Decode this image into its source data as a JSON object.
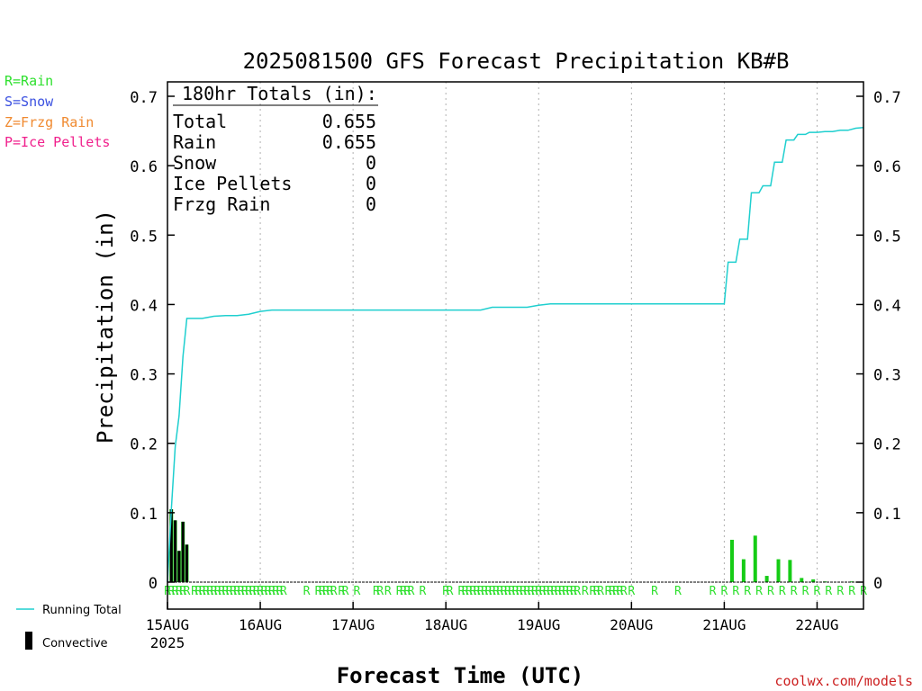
{
  "chart_data": {
    "type": "bar",
    "title": "2025081500 GFS Forecast Precipitation KB#B",
    "xlabel": "Forecast Time (UTC)",
    "ylabel": "Precipitation (in)",
    "ylim": [
      0,
      0.7
    ],
    "y_ticks": [
      0,
      0.1,
      0.2,
      0.3,
      0.4,
      0.5,
      0.6,
      0.7
    ],
    "y_tick_labels": [
      "0",
      "0.1",
      "0.2",
      "0.3",
      "0.4",
      "0.5",
      "0.6",
      "0.7"
    ],
    "xlim_hours": [
      0,
      180
    ],
    "x_ticks": [
      {
        "hour": 0,
        "label": "15AUG",
        "sub": "2025"
      },
      {
        "hour": 24,
        "label": "16AUG"
      },
      {
        "hour": 48,
        "label": "17AUG"
      },
      {
        "hour": 72,
        "label": "18AUG"
      },
      {
        "hour": 96,
        "label": "19AUG"
      },
      {
        "hour": 120,
        "label": "20AUG"
      },
      {
        "hour": 144,
        "label": "21AUG"
      },
      {
        "hour": 168,
        "label": "22AUG"
      }
    ],
    "grid": "vertical dotted at day boundaries",
    "legend_placement": "left",
    "legend_types": [
      {
        "label": "R=Rain",
        "color": "#2ee02e"
      },
      {
        "label": "S=Snow",
        "color": "#3a50e0"
      },
      {
        "label": "Z=Frzg Rain",
        "color": "#f08a30"
      },
      {
        "label": "P=Ice Pellets",
        "color": "#f0208c"
      }
    ],
    "legend_series": [
      {
        "label": "Running Total",
        "color": "#1fcfcf",
        "kind": "line"
      },
      {
        "label": "Convective",
        "color": "#000000",
        "kind": "bar"
      }
    ],
    "totals_box": {
      "header": "180hr Totals (in):",
      "rows": [
        {
          "label": "Total",
          "value": "0.655"
        },
        {
          "label": "Rain",
          "value": "0.655"
        },
        {
          "label": "Snow",
          "value": "0"
        },
        {
          "label": "Ice Pellets",
          "value": "0"
        },
        {
          "label": "Frzg Rain",
          "value": "0"
        }
      ]
    },
    "colors": {
      "running_total": "#1fcfcf",
      "rain_bar": "#16cc16",
      "convective": "#000000",
      "grid": "#b0b0b0",
      "type_marker": "#2ee02e",
      "credit": "#cc2020"
    },
    "running_total": {
      "hours": [
        0,
        1,
        2,
        3,
        4,
        5,
        6,
        9,
        12,
        15,
        18,
        21,
        24,
        27,
        30,
        54,
        78,
        81,
        84,
        87,
        90,
        93,
        96,
        99,
        102,
        144,
        145,
        147,
        148,
        150,
        151,
        153,
        154,
        156,
        157,
        159,
        160,
        162,
        163,
        165,
        166,
        168,
        170,
        172,
        174,
        176,
        178,
        180
      ],
      "values": [
        0,
        0.105,
        0.195,
        0.24,
        0.325,
        0.38,
        0.38,
        0.38,
        0.383,
        0.384,
        0.384,
        0.386,
        0.39,
        0.392,
        0.392,
        0.392,
        0.392,
        0.392,
        0.396,
        0.396,
        0.396,
        0.396,
        0.399,
        0.401,
        0.401,
        0.401,
        0.461,
        0.461,
        0.494,
        0.494,
        0.561,
        0.561,
        0.571,
        0.571,
        0.605,
        0.605,
        0.637,
        0.637,
        0.645,
        0.645,
        0.648,
        0.648,
        0.649,
        0.649,
        0.651,
        0.651,
        0.654,
        0.655
      ]
    },
    "total_precip_bars": {
      "hours": [
        1,
        2,
        3,
        4,
        5,
        146,
        149,
        152,
        155,
        158,
        161,
        164,
        167,
        170,
        177
      ],
      "values": [
        0.105,
        0.089,
        0.045,
        0.087,
        0.054,
        0.061,
        0.033,
        0.067,
        0.009,
        0.033,
        0.032,
        0.006,
        0.004,
        0.001,
        0.001
      ]
    },
    "convective_bars": {
      "hours": [
        1,
        2,
        3,
        4,
        5
      ],
      "values": [
        0.105,
        0.089,
        0.045,
        0.087,
        0.054
      ]
    },
    "type_markers": {
      "symbol": "R",
      "hours": [
        0,
        1,
        2,
        3,
        4,
        5,
        7,
        8,
        9,
        10,
        11,
        12,
        13,
        14,
        15,
        16,
        17,
        18,
        19,
        20,
        21,
        22,
        23,
        24,
        25,
        26,
        27,
        28,
        29,
        30,
        36,
        39,
        40,
        41,
        42,
        43,
        45,
        46,
        49,
        54,
        55,
        57,
        60,
        61,
        62,
        63,
        66,
        72,
        73,
        76,
        77,
        78,
        79,
        80,
        81,
        82,
        83,
        84,
        85,
        86,
        87,
        88,
        89,
        90,
        91,
        92,
        93,
        94,
        95,
        96,
        97,
        98,
        99,
        100,
        101,
        102,
        103,
        104,
        105,
        106,
        108,
        110,
        111,
        112,
        114,
        115,
        116,
        117,
        118,
        120,
        126,
        132,
        141,
        144,
        147,
        150,
        153,
        156,
        159,
        162,
        165,
        168,
        171,
        174,
        177,
        180
      ]
    }
  },
  "credit": "coolwx.com/models"
}
